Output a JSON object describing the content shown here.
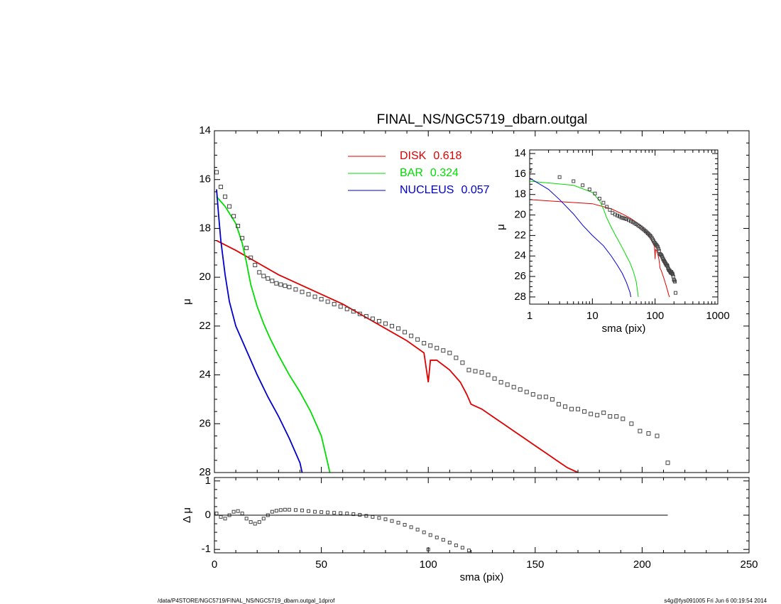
{
  "chart_data": [
    {
      "type": "line",
      "title": "FINAL_NS/NGC5719_dbarn.outgal",
      "ylabel": "μ",
      "xlim": [
        0,
        250
      ],
      "ylim": [
        28,
        14
      ],
      "xticks": [
        0,
        50,
        100,
        150,
        200,
        250
      ],
      "yticks": [
        14,
        16,
        18,
        20,
        22,
        24,
        26,
        28
      ],
      "points": {
        "color": "#444444",
        "x": [
          1,
          3,
          5,
          7,
          9,
          11,
          13,
          15,
          17,
          19,
          21,
          23,
          25,
          27,
          29,
          31,
          33,
          35,
          38,
          41,
          44,
          47,
          50,
          53,
          56,
          59,
          62,
          65,
          68,
          71,
          74,
          77,
          80,
          83,
          86,
          89,
          92,
          95,
          98,
          101,
          104,
          107,
          110,
          113,
          116,
          119,
          122,
          125,
          128,
          131,
          134,
          137,
          140,
          143,
          146,
          149,
          152,
          155,
          158,
          161,
          164,
          167,
          170,
          173,
          176,
          179,
          182,
          185,
          188,
          191,
          195,
          199,
          203,
          207,
          212
        ],
        "values": [
          15.7,
          16.3,
          16.7,
          17.1,
          17.5,
          17.9,
          18.4,
          18.8,
          19.2,
          19.5,
          19.8,
          19.95,
          20.05,
          20.15,
          20.25,
          20.3,
          20.35,
          20.4,
          20.5,
          20.6,
          20.7,
          20.8,
          20.9,
          21.0,
          21.1,
          21.2,
          21.3,
          21.4,
          21.5,
          21.6,
          21.7,
          21.8,
          21.9,
          22.0,
          22.1,
          22.25,
          22.4,
          22.55,
          22.7,
          22.8,
          22.9,
          23.0,
          23.1,
          23.3,
          23.5,
          23.8,
          23.85,
          23.9,
          24.0,
          24.15,
          24.3,
          24.4,
          24.5,
          24.6,
          24.7,
          24.8,
          24.9,
          24.9,
          25.0,
          25.2,
          25.3,
          25.4,
          25.4,
          25.5,
          25.6,
          25.65,
          25.55,
          25.7,
          25.7,
          25.8,
          26.0,
          26.3,
          26.4,
          26.5,
          27.6
        ]
      },
      "series": [
        {
          "name": "DISK",
          "fraction": 0.618,
          "color": "#e00000",
          "x": [
            1,
            10,
            20,
            30,
            40,
            50,
            60,
            70,
            80,
            90,
            98,
            100,
            101,
            104,
            110,
            115,
            118,
            120,
            125,
            130,
            135,
            140,
            145,
            150,
            155,
            160,
            165,
            170
          ],
          "values": [
            18.5,
            18.9,
            19.4,
            19.9,
            20.3,
            20.7,
            21.1,
            21.6,
            22.1,
            22.6,
            23.1,
            24.3,
            23.4,
            23.4,
            23.8,
            24.3,
            24.8,
            25.2,
            25.4,
            25.7,
            26.0,
            26.3,
            26.6,
            26.9,
            27.2,
            27.5,
            27.8,
            28.0
          ]
        },
        {
          "name": "BAR",
          "fraction": 0.324,
          "color": "#00dd00",
          "x": [
            1,
            5,
            10,
            13,
            15,
            17,
            20,
            23,
            26,
            30,
            35,
            40,
            45,
            50,
            54
          ],
          "values": [
            16.7,
            17.1,
            17.8,
            18.6,
            19.4,
            20.3,
            21.2,
            21.9,
            22.5,
            23.2,
            24.0,
            24.7,
            25.5,
            26.5,
            28.0
          ]
        },
        {
          "name": "NUCLEUS",
          "fraction": 0.057,
          "color": "#0000cc",
          "x": [
            1,
            2,
            3,
            5,
            7,
            10,
            15,
            20,
            25,
            30,
            35,
            40,
            41
          ],
          "values": [
            16.4,
            17.5,
            18.5,
            19.9,
            21.0,
            22.0,
            23.0,
            24.0,
            24.9,
            25.7,
            26.6,
            27.6,
            28.0
          ]
        }
      ]
    },
    {
      "type": "scatter",
      "xlabel": "sma (pix)",
      "ylabel": "Δ μ",
      "xlim": [
        0,
        250
      ],
      "ylim": [
        -1.1,
        1.1
      ],
      "xticks": [
        0,
        50,
        100,
        150,
        200,
        250
      ],
      "yticks": [
        -1,
        0,
        1
      ],
      "zero_line": 0,
      "x": [
        1,
        3,
        5,
        7,
        9,
        11,
        13,
        15,
        17,
        19,
        21,
        23,
        25,
        27,
        29,
        31,
        33,
        35,
        38,
        41,
        44,
        47,
        50,
        53,
        56,
        59,
        62,
        65,
        68,
        71,
        74,
        77,
        80,
        83,
        86,
        89,
        92,
        95,
        98,
        100,
        101,
        104,
        107,
        110,
        113,
        116,
        119
      ],
      "values": [
        0.05,
        -0.05,
        -0.1,
        0,
        0.1,
        0.12,
        0.05,
        -0.1,
        -0.2,
        -0.25,
        -0.2,
        -0.1,
        0,
        0.1,
        0.13,
        0.15,
        0.16,
        0.16,
        0.15,
        0.14,
        0.12,
        0.1,
        0.09,
        0.08,
        0.07,
        0.06,
        0.05,
        0.03,
        0.01,
        -0.02,
        -0.05,
        -0.08,
        -0.12,
        -0.17,
        -0.22,
        -0.28,
        -0.35,
        -0.42,
        -0.5,
        -1.0,
        -0.58,
        -0.65,
        -0.72,
        -0.8,
        -0.88,
        -0.95,
        -1.03
      ]
    },
    {
      "type": "line",
      "log_x": true,
      "xlabel": "sma (pix)",
      "ylabel": "μ",
      "xlim": [
        1,
        1000
      ],
      "ylim": [
        28.7,
        13.65
      ],
      "xticks": [
        1,
        10,
        100,
        1000
      ],
      "yticks": [
        14,
        16,
        18,
        20,
        22,
        24,
        26,
        28
      ]
    }
  ],
  "footer": {
    "left": "/data/P4STORE/NGC5719/FINAL_NS/NGC5719_dbarn.outgal_1dprof",
    "right": "s4g@fys091005  Fri Jun  6 00:19:54 2014"
  }
}
